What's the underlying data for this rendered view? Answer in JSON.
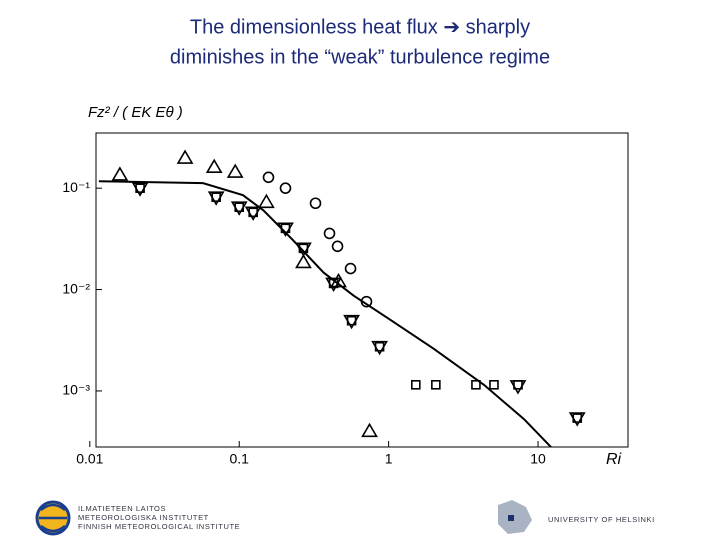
{
  "title_lines": [
    "The dimensionless heat flux ➔ sharply",
    "diminishes in the “weak” turbulence regime"
  ],
  "chart_data": {
    "type": "scatter",
    "x_label": "Ri",
    "y_label": "Fz² / ( EK Eθ )",
    "log_x": true,
    "log_y": true,
    "xlim": [
      0.011,
      40
    ],
    "ylim": [
      0.00028,
      0.35
    ],
    "xticks": [
      0.01,
      0.1,
      1,
      10
    ],
    "yticks": [
      {
        "value": 0.1,
        "label": "10⁻¹"
      },
      {
        "value": 0.01,
        "label": "10⁻²"
      },
      {
        "value": 0.001,
        "label": "10⁻³"
      }
    ],
    "series": [
      {
        "marker": "triangle-up",
        "color": "#000000",
        "x": [
          0.0159,
          0.0434,
          0.068,
          0.094,
          0.152,
          0.269,
          0.462,
          0.745
        ],
        "values": [
          0.135,
          0.198,
          0.161,
          0.144,
          0.0726,
          0.0185,
          0.012,
          0.0004
        ]
      },
      {
        "marker": "triangle-down",
        "color": "#000000",
        "x": [
          0.0217,
          0.0701,
          0.1,
          0.124,
          0.204,
          0.269,
          0.428,
          0.565,
          0.87,
          7.34,
          18.3
        ],
        "values": [
          0.1,
          0.0815,
          0.0649,
          0.0578,
          0.0402,
          0.0255,
          0.0115,
          0.00493,
          0.00273,
          0.00112,
          0.00054
        ]
      },
      {
        "marker": "square",
        "color": "#000000",
        "x": [
          0.0217,
          0.0701,
          0.1,
          0.124,
          0.204,
          0.269,
          0.428,
          0.565,
          0.87,
          1.52,
          2.07,
          3.84,
          5.07,
          7.34,
          18.3
        ],
        "values": [
          0.1,
          0.0815,
          0.0649,
          0.0578,
          0.0402,
          0.0255,
          0.0115,
          0.00493,
          0.00273,
          0.00115,
          0.00115,
          0.00115,
          0.00115,
          0.00115,
          0.00054
        ]
      },
      {
        "marker": "circle",
        "color": "#000000",
        "x": [
          0.157,
          0.204,
          0.324,
          0.402,
          0.455,
          0.556,
          0.711
        ],
        "values": [
          0.128,
          0.1,
          0.071,
          0.0358,
          0.0267,
          0.0161,
          0.0076
        ]
      },
      {
        "marker": "line",
        "color": "#000000",
        "x": [
          0.0115,
          0.0573,
          0.106,
          0.145,
          0.23,
          0.367,
          0.582,
          1,
          2.0,
          4.34,
          8.05,
          12.4
        ],
        "values": [
          0.117,
          0.112,
          0.0853,
          0.0605,
          0.0305,
          0.0147,
          0.00873,
          0.00516,
          0.00261,
          0.00115,
          0.000528,
          0.000273
        ]
      }
    ]
  },
  "footer": {
    "fmi_lines": [
      "ILMATIETEEN LAITOS",
      "METEOROLOGISKA INSTITUTET",
      "FINNISH METEOROLOGICAL INSTITUTE"
    ],
    "university": "UNIVERSITY OF HELSINKI"
  }
}
